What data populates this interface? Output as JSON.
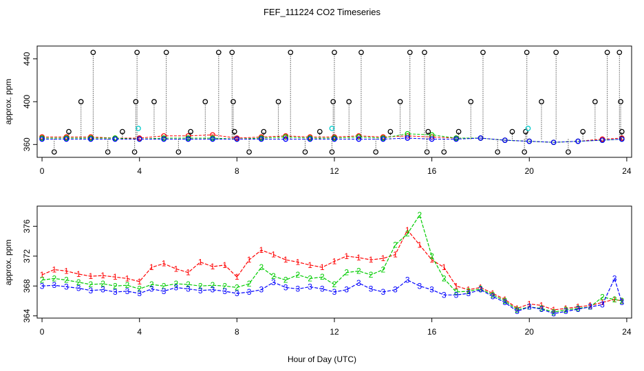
{
  "title": "FEF_111224  CO2 Timeseries",
  "xlabel": "Hour of Day (UTC)",
  "chart_data": [
    {
      "type": "scatter",
      "ylabel": "approx. ppm",
      "xlim": [
        -0.2,
        24.2
      ],
      "ylim": [
        348,
        452
      ],
      "xticks": [
        0,
        4,
        8,
        12,
        16,
        20,
        24
      ],
      "yticks": [
        360,
        400,
        440
      ],
      "colors": {
        "red": "#ff0000",
        "green": "#00cc00",
        "blue": "#0000ff",
        "black": "#000000",
        "cyan": "#00cccc"
      },
      "series": [
        {
          "color": "red",
          "marker": "circle",
          "style": "dashed-line",
          "x": [
            0.0,
            1.0,
            2.0,
            3.0,
            4.0,
            5.0,
            6.0,
            7.0,
            8.0,
            9.0,
            10.0,
            11.0,
            12.0,
            13.0,
            14.0,
            15.0,
            16.0,
            17.0,
            18.0,
            19.0,
            20.0,
            21.0,
            22.0,
            23.0,
            23.8
          ],
          "y": [
            367,
            367,
            367,
            366,
            366,
            368,
            368,
            369,
            366,
            367,
            368,
            367,
            367,
            368,
            367,
            368,
            367,
            366,
            366,
            364,
            363,
            362,
            363,
            365,
            366
          ]
        },
        {
          "color": "green",
          "marker": "circle",
          "style": "dashed-line",
          "x": [
            0.0,
            1.0,
            2.0,
            3.0,
            4.0,
            5.0,
            6.0,
            7.0,
            8.0,
            9.0,
            10.0,
            11.0,
            12.0,
            13.0,
            14.0,
            15.0,
            16.0,
            17.0,
            18.0,
            19.0,
            20.0,
            21.0,
            22.0,
            23.0,
            23.8
          ],
          "y": [
            366,
            366,
            366,
            366,
            365,
            366,
            366,
            366,
            365,
            366,
            367,
            366,
            366,
            367,
            366,
            370,
            369,
            366,
            366,
            364,
            363,
            362,
            363,
            364,
            365
          ]
        },
        {
          "color": "blue",
          "marker": "circle",
          "style": "dashed-line",
          "x": [
            0.0,
            1.0,
            2.0,
            3.0,
            4.0,
            5.0,
            6.0,
            7.0,
            8.0,
            9.0,
            10.0,
            11.0,
            12.0,
            13.0,
            14.0,
            15.0,
            16.0,
            17.0,
            18.0,
            19.0,
            20.0,
            21.0,
            22.0,
            23.0,
            23.8
          ],
          "y": [
            365,
            365,
            365,
            365,
            365,
            365,
            365,
            365,
            365,
            365,
            365,
            365,
            365,
            365,
            365,
            366,
            365,
            365,
            366,
            364,
            363,
            362,
            363,
            364,
            365
          ]
        },
        {
          "color": "black",
          "marker": "circle",
          "style": "dotted-spikes",
          "x": [
            0.5,
            1.1,
            1.6,
            2.1,
            2.7,
            3.3,
            3.8,
            3.85,
            3.9,
            4.6,
            5.1,
            5.6,
            6.1,
            6.7,
            7.25,
            7.8,
            7.85,
            7.9,
            8.5,
            9.1,
            9.7,
            10.2,
            10.8,
            11.4,
            11.9,
            11.95,
            12.0,
            12.6,
            13.1,
            13.7,
            14.3,
            14.7,
            15.1,
            15.7,
            15.8,
            15.85,
            16.5,
            17.1,
            17.6,
            18.1,
            18.7,
            19.3,
            19.8,
            19.85,
            19.9,
            20.5,
            21.1,
            21.6,
            22.2,
            22.7,
            23.2,
            23.7,
            23.75,
            23.8
          ],
          "y": [
            353,
            372,
            400,
            446,
            353,
            372,
            353,
            400,
            446,
            400,
            446,
            353,
            372,
            400,
            446,
            446,
            400,
            372,
            353,
            372,
            400,
            446,
            353,
            372,
            353,
            400,
            446,
            400,
            446,
            353,
            372,
            400,
            446,
            446,
            353,
            372,
            353,
            372,
            400,
            446,
            353,
            372,
            353,
            372,
            446,
            400,
            446,
            353,
            372,
            400,
            446,
            446,
            400,
            372
          ]
        },
        {
          "color": "cyan",
          "marker": "circle",
          "style": "points",
          "x": [
            3.95,
            11.9,
            19.95
          ],
          "y": [
            375,
            375,
            375
          ]
        }
      ]
    },
    {
      "type": "line",
      "ylabel": "approx. ppm",
      "xlim": [
        -0.2,
        24.2
      ],
      "ylim": [
        363.7,
        378.7
      ],
      "xticks": [
        0,
        4,
        8,
        12,
        16,
        20,
        24
      ],
      "yticks": [
        364,
        368,
        372,
        376
      ],
      "colors": {
        "1": "#ff0000",
        "2": "#00cc00",
        "3": "#0000ff"
      },
      "series": [
        {
          "label": "1",
          "color": "1",
          "x": [
            0.0,
            0.5,
            1.0,
            1.5,
            2.0,
            2.5,
            3.0,
            3.5,
            4.0,
            4.5,
            5.0,
            5.5,
            6.0,
            6.5,
            7.0,
            7.5,
            8.0,
            8.5,
            9.0,
            9.5,
            10.0,
            10.5,
            11.0,
            11.5,
            12.0,
            12.5,
            13.0,
            13.5,
            14.0,
            14.5,
            15.0,
            15.5,
            16.0,
            16.5,
            17.0,
            17.5,
            18.0,
            18.5,
            19.0,
            19.5,
            20.0,
            20.5,
            21.0,
            21.5,
            22.0,
            22.5,
            23.0,
            23.5,
            23.8
          ],
          "y": [
            369.5,
            370.2,
            370.0,
            369.6,
            369.3,
            369.4,
            369.2,
            369.0,
            368.6,
            370.5,
            371.0,
            370.3,
            369.8,
            371.2,
            370.6,
            370.8,
            369.2,
            371.5,
            372.8,
            372.2,
            371.5,
            371.2,
            370.8,
            370.5,
            371.3,
            372.0,
            371.8,
            371.5,
            371.7,
            372.2,
            375.5,
            373.5,
            371.5,
            370.5,
            368.0,
            367.5,
            367.8,
            367.0,
            366.2,
            365.0,
            365.6,
            365.4,
            364.8,
            365.0,
            365.2,
            365.4,
            365.8,
            366.2,
            366.0
          ]
        },
        {
          "label": "2",
          "color": "2",
          "x": [
            0.0,
            0.5,
            1.0,
            1.5,
            2.0,
            2.5,
            3.0,
            3.5,
            4.0,
            4.5,
            5.0,
            5.5,
            6.0,
            6.5,
            7.0,
            7.5,
            8.0,
            8.5,
            9.0,
            9.5,
            10.0,
            10.5,
            11.0,
            11.5,
            12.0,
            12.5,
            13.0,
            13.5,
            14.0,
            14.5,
            15.0,
            15.5,
            16.0,
            16.5,
            17.0,
            17.5,
            18.0,
            18.5,
            19.0,
            19.5,
            20.0,
            20.5,
            21.0,
            21.5,
            22.0,
            22.5,
            23.0,
            23.5,
            23.8
          ],
          "y": [
            368.8,
            369.0,
            368.8,
            368.5,
            368.2,
            368.3,
            368.0,
            368.1,
            367.6,
            368.2,
            368.0,
            368.3,
            368.2,
            368.0,
            368.1,
            368.0,
            367.8,
            368.3,
            370.5,
            369.3,
            368.8,
            369.5,
            369.0,
            369.2,
            368.2,
            369.8,
            370.0,
            369.5,
            370.2,
            373.5,
            375.0,
            377.5,
            372.0,
            369.0,
            367.2,
            367.3,
            367.6,
            366.8,
            366.0,
            364.8,
            365.2,
            365.0,
            364.5,
            364.8,
            365.0,
            365.2,
            366.5,
            366.2,
            366.0
          ]
        },
        {
          "label": "3",
          "color": "3",
          "x": [
            0.0,
            0.5,
            1.0,
            1.5,
            2.0,
            2.5,
            3.0,
            3.5,
            4.0,
            4.5,
            5.0,
            5.5,
            6.0,
            6.5,
            7.0,
            7.5,
            8.0,
            8.5,
            9.0,
            9.5,
            10.0,
            10.5,
            11.0,
            11.5,
            12.0,
            12.5,
            13.0,
            13.5,
            14.0,
            14.5,
            15.0,
            15.5,
            16.0,
            16.5,
            17.0,
            17.5,
            18.0,
            18.5,
            19.0,
            19.5,
            20.0,
            20.5,
            21.0,
            21.5,
            22.0,
            22.5,
            23.0,
            23.5,
            23.8
          ],
          "y": [
            368.0,
            368.1,
            367.9,
            367.7,
            367.4,
            367.5,
            367.2,
            367.3,
            367.0,
            367.6,
            367.3,
            367.8,
            367.6,
            367.4,
            367.5,
            367.3,
            367.0,
            367.2,
            367.5,
            368.5,
            367.8,
            367.6,
            367.9,
            367.6,
            367.2,
            367.5,
            368.4,
            367.6,
            367.2,
            367.5,
            368.8,
            368.0,
            367.5,
            366.8,
            366.8,
            367.0,
            367.5,
            366.6,
            365.8,
            364.6,
            365.2,
            364.9,
            364.3,
            364.6,
            364.9,
            365.2,
            365.5,
            369.0,
            365.8
          ]
        }
      ]
    }
  ]
}
